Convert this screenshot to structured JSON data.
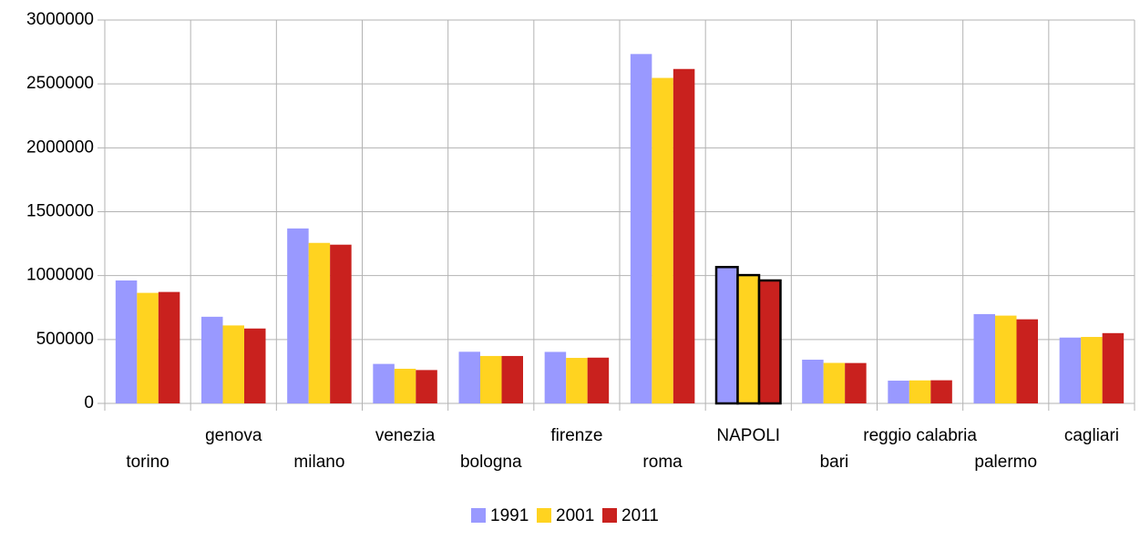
{
  "chart_data": {
    "type": "bar",
    "categories": [
      "torino",
      "genova",
      "milano",
      "venezia",
      "bologna",
      "firenze",
      "roma",
      "NAPOLI",
      "bari",
      "reggio calabria",
      "palermo",
      "cagliari"
    ],
    "series": [
      {
        "name": "1991",
        "color": "#9999ff",
        "values": [
          962000,
          678000,
          1369000,
          309000,
          404000,
          403000,
          2734000,
          1067000,
          342000,
          178000,
          699000,
          515000
        ]
      },
      {
        "name": "2001",
        "color": "#ffd320",
        "values": [
          865000,
          610000,
          1256000,
          271000,
          371000,
          356000,
          2547000,
          1004000,
          317000,
          180000,
          687000,
          520000
        ]
      },
      {
        "name": "2011",
        "color": "#c9211e",
        "values": [
          872000,
          586000,
          1242000,
          261000,
          371000,
          358000,
          2617000,
          962000,
          316000,
          181000,
          658000,
          550000
        ]
      }
    ],
    "ylim": [
      0,
      3000000
    ],
    "yticks": [
      0,
      500000,
      1000000,
      1500000,
      2000000,
      2500000,
      3000000
    ],
    "grid": true,
    "legend": "bottom",
    "outline_category": 7,
    "outline_color": "#000000"
  }
}
